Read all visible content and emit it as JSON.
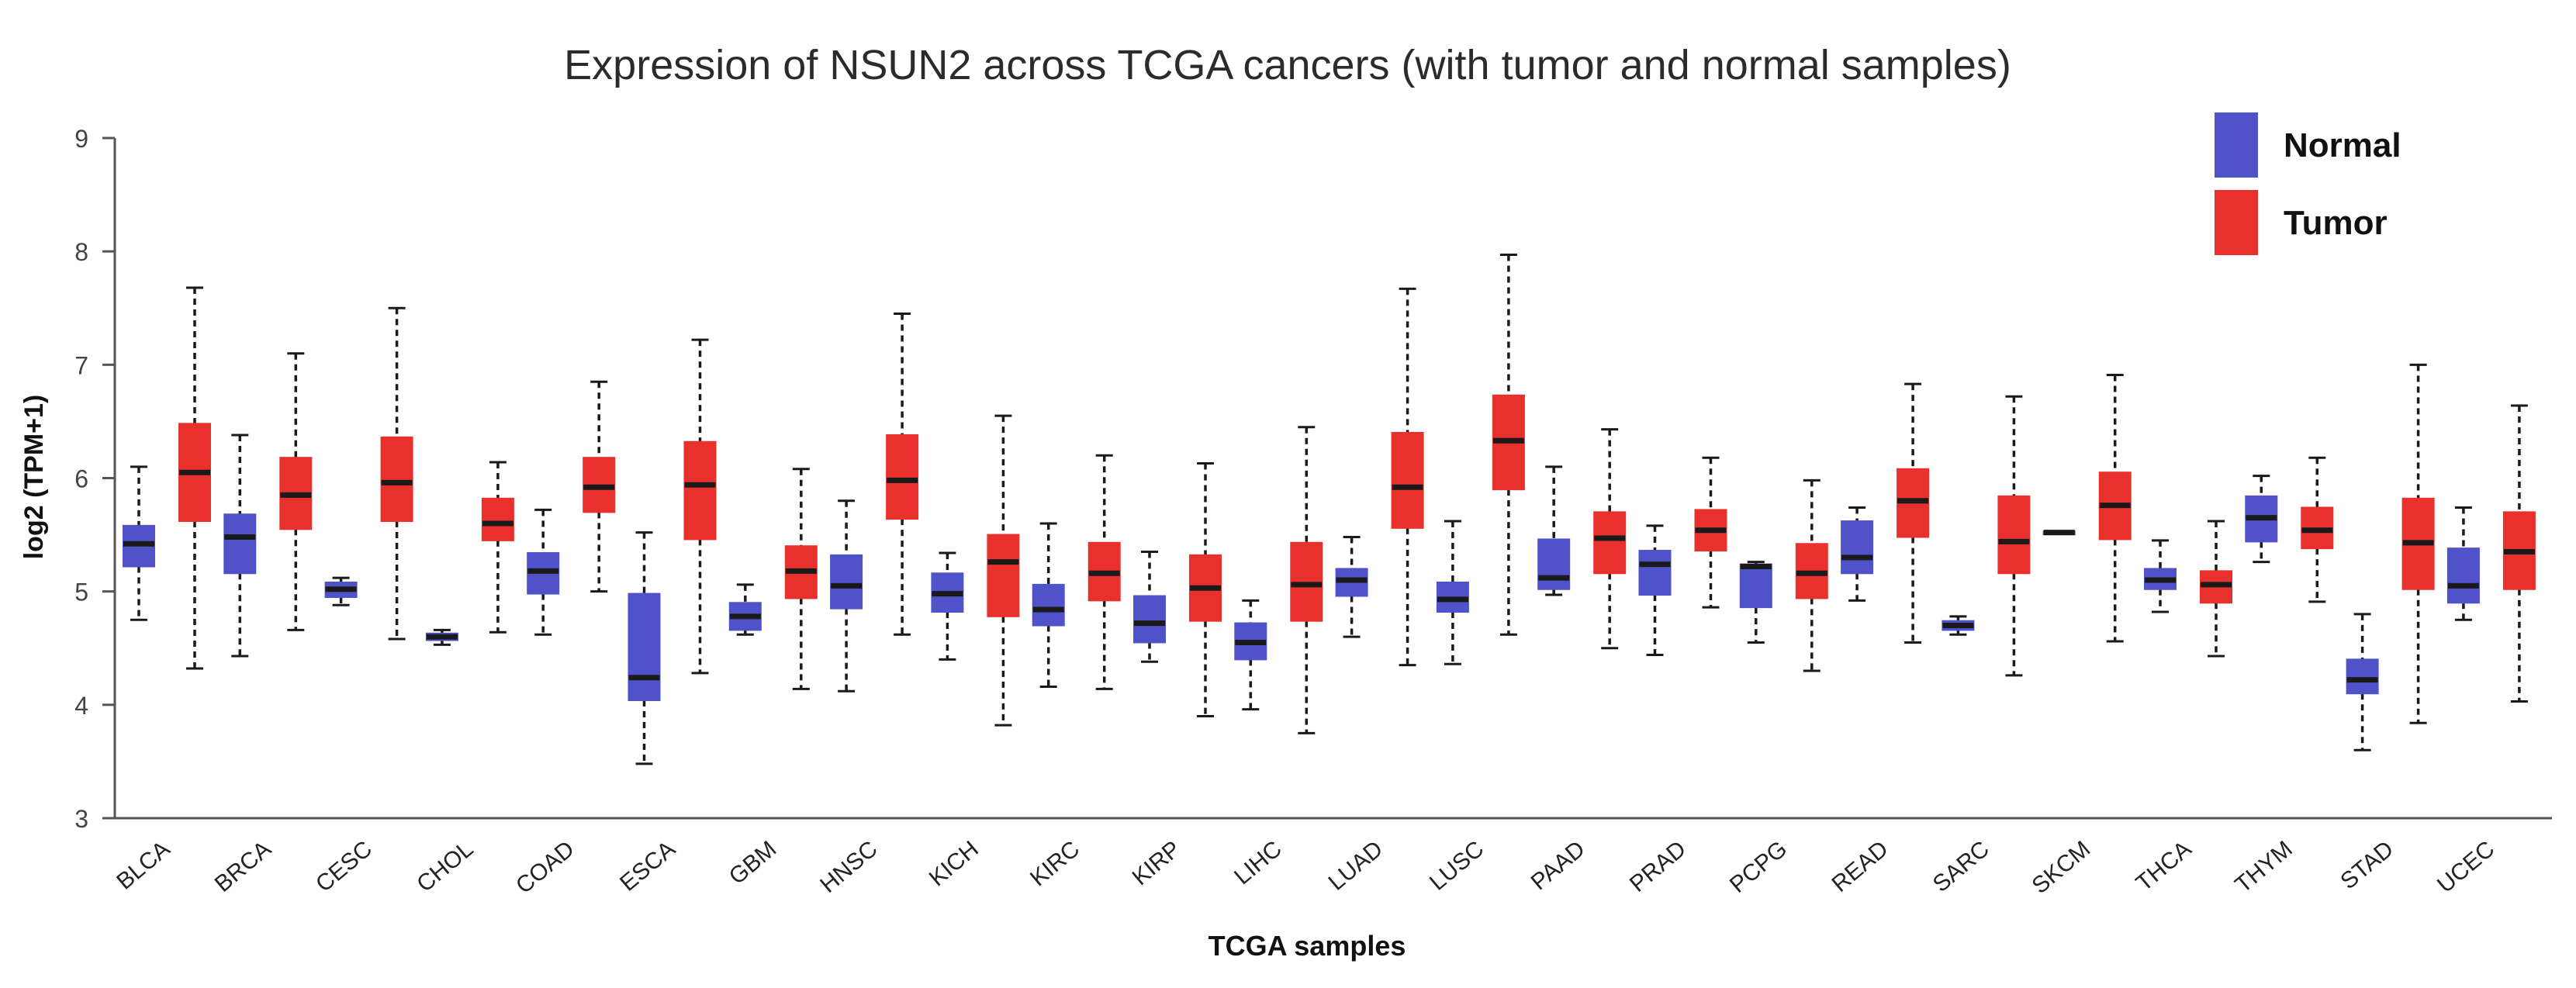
{
  "chart_data": {
    "type": "boxplot",
    "title": "Expression of NSUN2 across TCGA cancers (with tumor and normal samples)",
    "xlabel": "TCGA samples",
    "ylabel": "log2 (TPM+1)",
    "ylim": [
      3,
      9
    ],
    "yticks": [
      3,
      4,
      5,
      6,
      7,
      8,
      9
    ],
    "grid": false,
    "legend_position": "top-right",
    "colors": {
      "normal": "#4f52c9",
      "tumor": "#e8302c",
      "median": "#1a1a1a",
      "axis": "#555555"
    },
    "legend": [
      {
        "key": "normal",
        "label": "Normal",
        "color": "#4f52c9"
      },
      {
        "key": "tumor",
        "label": "Tumor",
        "color": "#e8302c"
      }
    ],
    "categories": [
      "BLCA",
      "BRCA",
      "CESC",
      "CHOL",
      "COAD",
      "ESCA",
      "GBM",
      "HNSC",
      "KICH",
      "KIRC",
      "KIRP",
      "LIHC",
      "LUAD",
      "LUSC",
      "PAAD",
      "PRAD",
      "PCPG",
      "READ",
      "SARC",
      "SKCM",
      "THCA",
      "THYM",
      "STAD",
      "UCEC"
    ],
    "series": [
      {
        "name": "Normal",
        "boxes": [
          {
            "category": "BLCA",
            "whisker_low": 4.75,
            "q1": 5.22,
            "median": 5.42,
            "q3": 5.58,
            "whisker_high": 6.1
          },
          {
            "category": "BRCA",
            "whisker_low": 4.43,
            "q1": 5.16,
            "median": 5.48,
            "q3": 5.68,
            "whisker_high": 6.38
          },
          {
            "category": "CESC",
            "whisker_low": 4.88,
            "q1": 4.95,
            "median": 5.02,
            "q3": 5.08,
            "whisker_high": 5.12
          },
          {
            "category": "CHOL",
            "whisker_low": 4.53,
            "q1": 4.57,
            "median": 4.6,
            "q3": 4.63,
            "whisker_high": 4.66
          },
          {
            "category": "COAD",
            "whisker_low": 4.62,
            "q1": 4.98,
            "median": 5.18,
            "q3": 5.34,
            "whisker_high": 5.72
          },
          {
            "category": "ESCA",
            "whisker_low": 3.48,
            "q1": 4.04,
            "median": 4.24,
            "q3": 4.98,
            "whisker_high": 5.52
          },
          {
            "category": "GBM",
            "whisker_low": 4.62,
            "q1": 4.66,
            "median": 4.78,
            "q3": 4.9,
            "whisker_high": 5.06
          },
          {
            "category": "HNSC",
            "whisker_low": 4.12,
            "q1": 4.85,
            "median": 5.05,
            "q3": 5.32,
            "whisker_high": 5.8
          },
          {
            "category": "KICH",
            "whisker_low": 4.4,
            "q1": 4.82,
            "median": 4.98,
            "q3": 5.16,
            "whisker_high": 5.34
          },
          {
            "category": "KIRC",
            "whisker_low": 4.16,
            "q1": 4.7,
            "median": 4.84,
            "q3": 5.06,
            "whisker_high": 5.6
          },
          {
            "category": "KIRP",
            "whisker_low": 4.38,
            "q1": 4.55,
            "median": 4.72,
            "q3": 4.96,
            "whisker_high": 5.35
          },
          {
            "category": "LIHC",
            "whisker_low": 3.96,
            "q1": 4.4,
            "median": 4.55,
            "q3": 4.72,
            "whisker_high": 4.92
          },
          {
            "category": "LUAD",
            "whisker_low": 4.6,
            "q1": 4.96,
            "median": 5.1,
            "q3": 5.2,
            "whisker_high": 5.48
          },
          {
            "category": "LUSC",
            "whisker_low": 4.36,
            "q1": 4.82,
            "median": 4.93,
            "q3": 5.08,
            "whisker_high": 5.62
          },
          {
            "category": "PAAD",
            "whisker_low": 4.97,
            "q1": 5.02,
            "median": 5.12,
            "q3": 5.46,
            "whisker_high": 6.1
          },
          {
            "category": "PRAD",
            "whisker_low": 4.44,
            "q1": 4.97,
            "median": 5.24,
            "q3": 5.36,
            "whisker_high": 5.58
          },
          {
            "category": "PCPG",
            "whisker_low": 4.55,
            "q1": 4.86,
            "median": 5.22,
            "q3": 5.24,
            "whisker_high": 5.26
          },
          {
            "category": "READ",
            "whisker_low": 4.92,
            "q1": 5.16,
            "median": 5.3,
            "q3": 5.62,
            "whisker_high": 5.74
          },
          {
            "category": "SARC",
            "whisker_low": 4.62,
            "q1": 4.66,
            "median": 4.7,
            "q3": 4.74,
            "whisker_high": 4.78
          },
          {
            "category": "SKCM",
            "whisker_low": 5.51,
            "q1": 5.51,
            "median": 5.52,
            "q3": 5.53,
            "whisker_high": 5.53
          },
          {
            "category": "THCA",
            "whisker_low": 4.82,
            "q1": 5.02,
            "median": 5.1,
            "q3": 5.2,
            "whisker_high": 5.45
          },
          {
            "category": "THYM",
            "whisker_low": 5.26,
            "q1": 5.44,
            "median": 5.65,
            "q3": 5.84,
            "whisker_high": 6.02
          },
          {
            "category": "STAD",
            "whisker_low": 3.6,
            "q1": 4.1,
            "median": 4.22,
            "q3": 4.4,
            "whisker_high": 4.8
          },
          {
            "category": "UCEC",
            "whisker_low": 4.75,
            "q1": 4.9,
            "median": 5.05,
            "q3": 5.38,
            "whisker_high": 5.74
          }
        ]
      },
      {
        "name": "Tumor",
        "boxes": [
          {
            "category": "BLCA",
            "whisker_low": 4.32,
            "q1": 5.62,
            "median": 6.05,
            "q3": 6.48,
            "whisker_high": 7.68
          },
          {
            "category": "BRCA",
            "whisker_low": 4.66,
            "q1": 5.55,
            "median": 5.85,
            "q3": 6.18,
            "whisker_high": 7.1
          },
          {
            "category": "CESC",
            "whisker_low": 4.58,
            "q1": 5.62,
            "median": 5.96,
            "q3": 6.36,
            "whisker_high": 7.5
          },
          {
            "category": "CHOL",
            "whisker_low": 4.64,
            "q1": 5.45,
            "median": 5.6,
            "q3": 5.82,
            "whisker_high": 6.14
          },
          {
            "category": "COAD",
            "whisker_low": 5.0,
            "q1": 5.7,
            "median": 5.92,
            "q3": 6.18,
            "whisker_high": 6.85
          },
          {
            "category": "ESCA",
            "whisker_low": 4.28,
            "q1": 5.46,
            "median": 5.94,
            "q3": 6.32,
            "whisker_high": 7.22
          },
          {
            "category": "GBM",
            "whisker_low": 4.14,
            "q1": 4.94,
            "median": 5.18,
            "q3": 5.4,
            "whisker_high": 6.08
          },
          {
            "category": "HNSC",
            "whisker_low": 4.62,
            "q1": 5.64,
            "median": 5.98,
            "q3": 6.38,
            "whisker_high": 7.45
          },
          {
            "category": "KICH",
            "whisker_low": 3.82,
            "q1": 4.78,
            "median": 5.26,
            "q3": 5.5,
            "whisker_high": 6.55
          },
          {
            "category": "KIRC",
            "whisker_low": 4.14,
            "q1": 4.92,
            "median": 5.16,
            "q3": 5.43,
            "whisker_high": 6.2
          },
          {
            "category": "KIRP",
            "whisker_low": 3.9,
            "q1": 4.74,
            "median": 5.03,
            "q3": 5.32,
            "whisker_high": 6.13
          },
          {
            "category": "LIHC",
            "whisker_low": 3.75,
            "q1": 4.74,
            "median": 5.06,
            "q3": 5.43,
            "whisker_high": 6.45
          },
          {
            "category": "LUAD",
            "whisker_low": 4.35,
            "q1": 5.56,
            "median": 5.92,
            "q3": 6.4,
            "whisker_high": 7.67
          },
          {
            "category": "LUSC",
            "whisker_low": 4.62,
            "q1": 5.9,
            "median": 6.33,
            "q3": 6.73,
            "whisker_high": 7.97
          },
          {
            "category": "PAAD",
            "whisker_low": 4.5,
            "q1": 5.16,
            "median": 5.47,
            "q3": 5.7,
            "whisker_high": 6.43
          },
          {
            "category": "PRAD",
            "whisker_low": 4.86,
            "q1": 5.36,
            "median": 5.54,
            "q3": 5.72,
            "whisker_high": 6.18
          },
          {
            "category": "PCPG",
            "whisker_low": 4.3,
            "q1": 4.94,
            "median": 5.16,
            "q3": 5.42,
            "whisker_high": 5.98
          },
          {
            "category": "READ",
            "whisker_low": 4.55,
            "q1": 5.48,
            "median": 5.8,
            "q3": 6.08,
            "whisker_high": 6.83
          },
          {
            "category": "SARC",
            "whisker_low": 4.26,
            "q1": 5.16,
            "median": 5.44,
            "q3": 5.84,
            "whisker_high": 6.72
          },
          {
            "category": "SKCM",
            "whisker_low": 4.56,
            "q1": 5.46,
            "median": 5.76,
            "q3": 6.05,
            "whisker_high": 6.91
          },
          {
            "category": "THCA",
            "whisker_low": 4.43,
            "q1": 4.9,
            "median": 5.06,
            "q3": 5.18,
            "whisker_high": 5.62
          },
          {
            "category": "THYM",
            "whisker_low": 4.91,
            "q1": 5.38,
            "median": 5.54,
            "q3": 5.74,
            "whisker_high": 6.18
          },
          {
            "category": "STAD",
            "whisker_low": 3.84,
            "q1": 5.02,
            "median": 5.43,
            "q3": 5.82,
            "whisker_high": 7.0
          },
          {
            "category": "UCEC",
            "whisker_low": 4.03,
            "q1": 5.02,
            "median": 5.35,
            "q3": 5.7,
            "whisker_high": 6.64
          }
        ]
      }
    ]
  }
}
